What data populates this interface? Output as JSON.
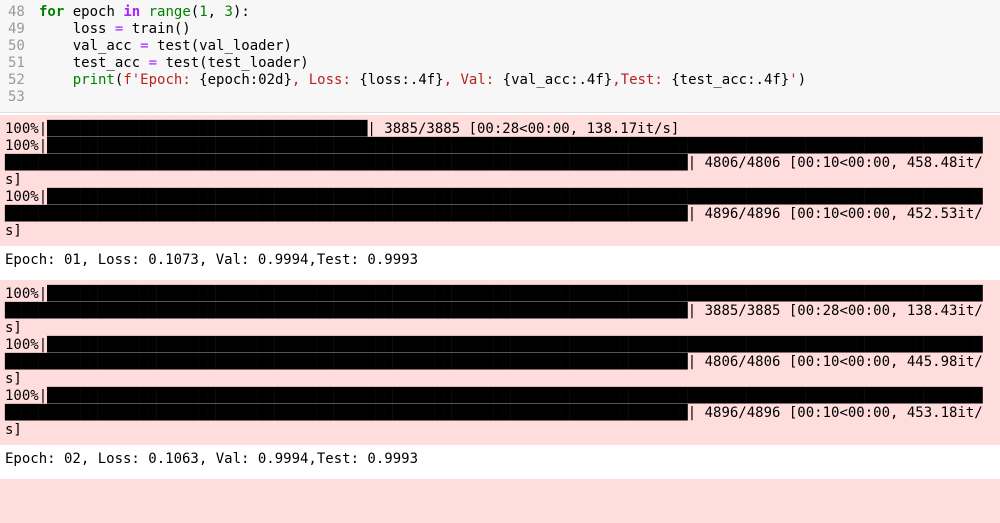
{
  "code": {
    "lines": [
      {
        "number": 48,
        "tokens": [
          {
            "text": "for",
            "color": "#008000",
            "bold": true
          },
          {
            "text": " epoch "
          },
          {
            "text": "in",
            "color": "#aa22ff",
            "bold": true
          },
          {
            "text": " "
          },
          {
            "text": "range",
            "color": "#008000"
          },
          {
            "text": "("
          },
          {
            "text": "1",
            "color": "#008000"
          },
          {
            "text": ", "
          },
          {
            "text": "3",
            "color": "#008000"
          },
          {
            "text": "):"
          }
        ]
      },
      {
        "number": 49,
        "tokens": [
          {
            "text": "    loss "
          },
          {
            "text": "=",
            "color": "#aa22ff"
          },
          {
            "text": " train()"
          }
        ]
      },
      {
        "number": 50,
        "tokens": [
          {
            "text": "    val_acc "
          },
          {
            "text": "=",
            "color": "#aa22ff"
          },
          {
            "text": " test(val_loader)"
          }
        ]
      },
      {
        "number": 51,
        "tokens": [
          {
            "text": "    test_acc "
          },
          {
            "text": "=",
            "color": "#aa22ff"
          },
          {
            "text": " test(test_loader)"
          }
        ]
      },
      {
        "number": 52,
        "tokens": [
          {
            "text": "    "
          },
          {
            "text": "print",
            "color": "#008000"
          },
          {
            "text": "("
          },
          {
            "text": "f'Epoch: ",
            "color": "#ba2121"
          },
          {
            "text": "{epoch:02d}"
          },
          {
            "text": ", Loss: ",
            "color": "#ba2121"
          },
          {
            "text": "{loss:.4f}"
          },
          {
            "text": ", Val: ",
            "color": "#ba2121"
          },
          {
            "text": "{val_acc:.4f}"
          },
          {
            "text": ",Test: ",
            "color": "#ba2121"
          },
          {
            "text": "{test_acc:.4f}"
          },
          {
            "text": "'",
            "color": "#ba2121"
          },
          {
            "text": ")"
          }
        ]
      },
      {
        "number": 53,
        "tokens": []
      }
    ]
  },
  "outputs": [
    {
      "stream": "stderr",
      "lines": [
        "100%|██████████████████████████████████████| 3885/3885 [00:28<00:00, 138.17it/s]",
        "100%|████████████████████████████████████████████████████████████████████████████████████████████████████████████████████████████████████████████████████████████████████████████████████████████████| 4806/4806 [00:10<00:00, 458.48it/s]",
        "100%|████████████████████████████████████████████████████████████████████████████████████████████████████████████████████████████████████████████████████████████████████████████████████████████████| 4896/4896 [00:10<00:00, 452.53it/s]"
      ]
    },
    {
      "stream": "stdout",
      "lines": [
        "Epoch: 01, Loss: 0.1073, Val: 0.9994,Test: 0.9993"
      ]
    },
    {
      "stream": "stderr",
      "lines": [
        "100%|████████████████████████████████████████████████████████████████████████████████████████████████████████████████████████████████████████████████████████████████████████████████████████████████| 3885/3885 [00:28<00:00, 138.43it/s]",
        "100%|████████████████████████████████████████████████████████████████████████████████████████████████████████████████████████████████████████████████████████████████████████████████████████████████| 4806/4806 [00:10<00:00, 445.98it/s]",
        "100%|████████████████████████████████████████████████████████████████████████████████████████████████████████████████████████████████████████████████████████████████████████████████████████████████| 4896/4896 [00:10<00:00, 453.18it/s]"
      ]
    },
    {
      "stream": "stdout",
      "lines": [
        "Epoch: 02, Loss: 0.1063, Val: 0.9994,Test: 0.9993"
      ]
    },
    {
      "stream": "stderr",
      "lines": []
    }
  ]
}
